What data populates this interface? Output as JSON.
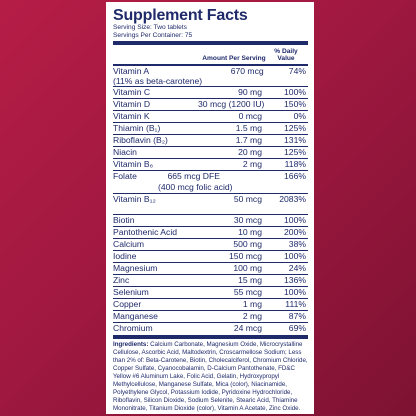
{
  "label": {
    "title": "Supplement Facts",
    "serving_size": "Serving Size: Two tablets",
    "servings_per_container": "Servings Per Container: 75",
    "header_amount": "Amount Per Serving",
    "header_dv": "% Daily Value"
  },
  "nutrients": [
    {
      "name": "Vitamin A",
      "amount": "670 mcg",
      "dv": "74%",
      "note": "(11% as beta-carotene)"
    },
    {
      "name": "Vitamin C",
      "amount": "90 mg",
      "dv": "100%"
    },
    {
      "name": "Vitamin D",
      "amount": "30 mcg (1200 IU)",
      "dv": "150%"
    },
    {
      "name": "Vitamin K",
      "amount": "0 mcg",
      "dv": "0%"
    },
    {
      "name": "Thiamin (B₁)",
      "amount": "1.5 mg",
      "dv": "125%"
    },
    {
      "name": "Riboflavin (B₂)",
      "amount": "1.7 mg",
      "dv": "131%"
    },
    {
      "name": "Niacin",
      "amount": "20 mg",
      "dv": "125%"
    },
    {
      "name": "Vitamin B₆",
      "amount": "2 mg",
      "dv": "118%"
    },
    {
      "name": "Folate",
      "amount": "665 mcg DFE",
      "dv": "166%",
      "note": "(400 mcg folic acid)"
    },
    {
      "name": "Vitamin B₁₂",
      "amount": "50 mcg",
      "dv": "2083%"
    },
    {
      "name": "Biotin",
      "amount": "30 mcg",
      "dv": "100%"
    },
    {
      "name": "Pantothenic Acid",
      "amount": "10 mg",
      "dv": "200%"
    },
    {
      "name": "Calcium",
      "amount": "500 mg",
      "dv": "38%"
    },
    {
      "name": "Iodine",
      "amount": "150 mcg",
      "dv": "100%"
    },
    {
      "name": "Magnesium",
      "amount": "100 mg",
      "dv": "24%"
    },
    {
      "name": "Zinc",
      "amount": "15 mg",
      "dv": "136%"
    },
    {
      "name": "Selenium",
      "amount": "55 mcg",
      "dv": "100%"
    },
    {
      "name": "Copper",
      "amount": "1 mg",
      "dv": "111%"
    },
    {
      "name": "Manganese",
      "amount": "2 mg",
      "dv": "87%"
    },
    {
      "name": "Chromium",
      "amount": "24 mcg",
      "dv": "69%"
    }
  ],
  "ingredients": {
    "label": "Ingredients:",
    "text": "Calcium Carbonate, Magnesium Oxide, Microcrystalline Cellulose, Ascorbic Acid, Maltodextrin, Croscarmellose Sodium; Less than 2% of: Beta-Carotene, Biotin, Cholecalciferol, Chromium Chloride, Copper Sulfate, Cyanocobalamin, D-Calcium Pantothenate, FD&C Yellow #6 Aluminum Lake, Folic Acid, Gelatin, Hydroxypropyl Methylcellulose, Manganese Sulfate, Mica (color), Niacinamide, Polyethylene Glycol, Potassium Iodide, Pyridoxine Hydrochloride, Riboflavin, Silicon Dioxide, Sodium Selenite, Stearic Acid, Thiamine Mononitrate, Titanium Dioxide (color), Vitamin A Acetate, Zinc Oxide."
  },
  "colors": {
    "ink": "#1f2a6b",
    "background": "#a01840",
    "panel": "#ffffff"
  }
}
